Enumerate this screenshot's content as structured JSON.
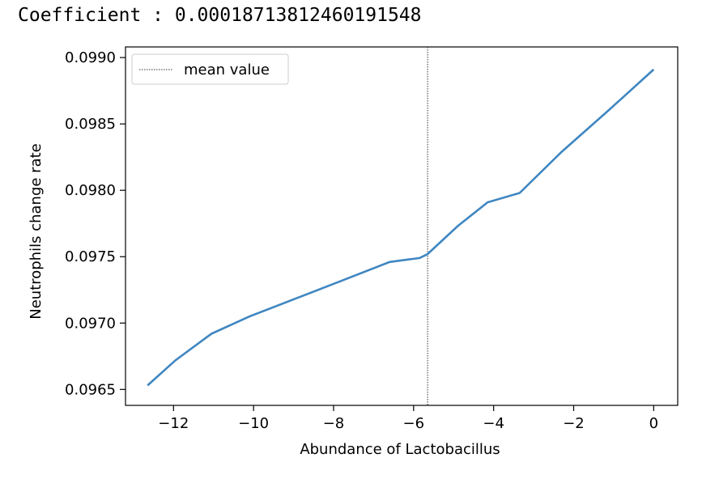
{
  "header": {
    "coefficient_text": "Coefficient : 0.00018713812460191548"
  },
  "chart_data": {
    "type": "line",
    "title": "",
    "xlabel": "Abundance of Lactobacillus",
    "ylabel": "Neutrophils change rate",
    "xlim": [
      -13.2,
      0.6
    ],
    "ylim": [
      0.09638,
      0.09908
    ],
    "xticks": [
      -12,
      -10,
      -8,
      -6,
      -4,
      -2,
      0
    ],
    "xtick_labels": [
      "−12",
      "−10",
      "−8",
      "−6",
      "−4",
      "−2",
      "0"
    ],
    "yticks": [
      0.0965,
      0.097,
      0.0975,
      0.098,
      0.0985,
      0.099
    ],
    "ytick_labels": [
      "0.0965",
      "0.0970",
      "0.0975",
      "0.0980",
      "0.0985",
      "0.0990"
    ],
    "series": [
      {
        "color": "#3f86c1",
        "x": [
          -12.65,
          -11.95,
          -11.05,
          -10.1,
          -8.9,
          -7.7,
          -6.6,
          -5.85,
          -5.65,
          -4.9,
          -4.15,
          -3.35,
          -2.3,
          -1.1,
          0.0
        ],
        "y": [
          0.09653,
          0.09672,
          0.09692,
          0.09705,
          0.09719,
          0.09733,
          0.09746,
          0.09749,
          0.09752,
          0.09773,
          0.09791,
          0.09798,
          0.09829,
          0.09861,
          0.09891
        ]
      }
    ],
    "mean_line": {
      "x": -5.65,
      "label": "mean value",
      "style": "dotted",
      "color": "#333333"
    },
    "legend": {
      "position": "top-left",
      "entries": [
        "mean value"
      ]
    },
    "grid": false
  }
}
